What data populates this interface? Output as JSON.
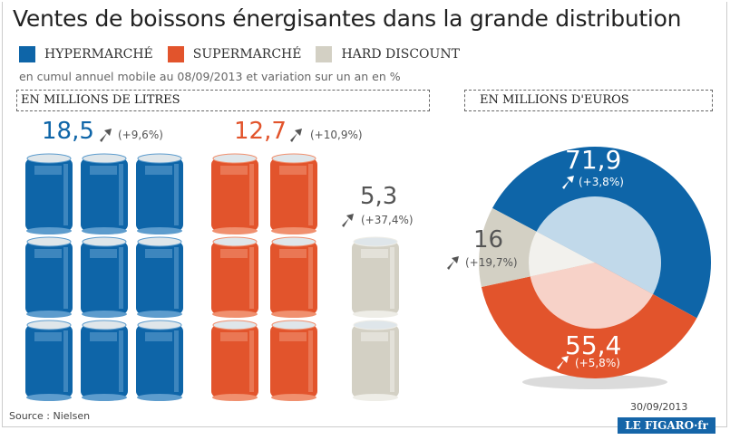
{
  "title": "Ventes de boissons énergisantes dans la grande distribution",
  "legend": [
    {
      "label": "HYPERMARCHÉ",
      "color": "#0e65a8"
    },
    {
      "label": "SUPERMARCHÉ",
      "color": "#e2542c"
    },
    {
      "label": "HARD DISCOUNT",
      "color": "#d3d0c4"
    }
  ],
  "subtitle": "en cumul annuel mobile au 08/09/2013 et variation sur un an en %",
  "source": "Source : Nielsen",
  "date": "30/09/2013",
  "logo": "LE FIGARO·fr",
  "chart_data": [
    {
      "type": "bar",
      "title": "EN MILLIONS DE LITRES",
      "categories": [
        "HYPERMARCHÉ",
        "SUPERMARCHÉ",
        "HARD DISCOUNT"
      ],
      "values": [
        18.5,
        12.7,
        5.3
      ],
      "labels": [
        "18,5",
        "12,7",
        "5,3"
      ],
      "variations": [
        "(+9,6%)",
        "(+10,9%)",
        "(+37,4%)"
      ],
      "can_counts": [
        9,
        6,
        2
      ],
      "can_columns": [
        3,
        2,
        1
      ]
    },
    {
      "type": "pie",
      "title": "EN MILLIONS D'EUROS",
      "categories": [
        "HYPERMARCHÉ",
        "SUPERMARCHÉ",
        "HARD DISCOUNT"
      ],
      "values": [
        71.9,
        55.4,
        16
      ],
      "labels": [
        "71,9",
        "55,4",
        "16"
      ],
      "variations": [
        "(+3,8%)",
        "(+5,8%)",
        "(+19,7%)"
      ],
      "inner_colors": [
        "#c1d9ea",
        "#f7d2c8",
        "#f2f1ed"
      ]
    }
  ]
}
